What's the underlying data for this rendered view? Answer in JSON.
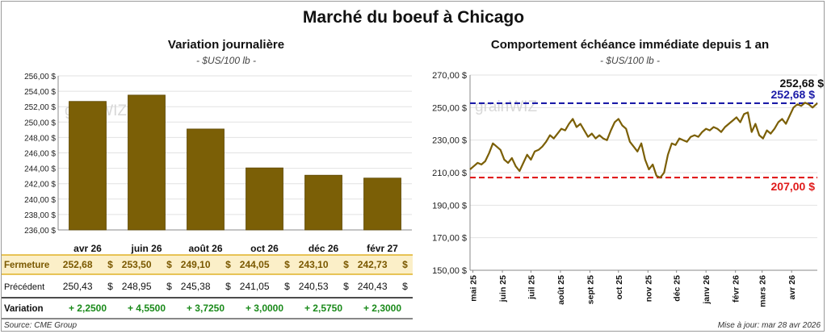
{
  "page": {
    "title": "Marché du boeuf à Chicago",
    "source": "Source: CME Group",
    "updated": "Mise à jour: mar 28 avr 2026",
    "watermark": "grainWIZ"
  },
  "colors": {
    "bar": "#7b5f06",
    "bar_edge": "#5e4804",
    "line": "#7b5f06",
    "fermeture_bg": "#fbefc8",
    "positive": "#1a8a1a",
    "upper_ref": "#1c1ca8",
    "lower_ref": "#e01b1b",
    "grid": "#e2e2e2"
  },
  "table": {
    "rows": [
      {
        "label": "Fermeture",
        "values": [
          "252,68",
          "253,50",
          "249,10",
          "244,05",
          "243,10",
          "242,73"
        ],
        "suffix": "$"
      },
      {
        "label": "Précédent",
        "values": [
          "250,43",
          "248,95",
          "245,38",
          "241,05",
          "240,53",
          "240,43"
        ],
        "suffix": "$"
      },
      {
        "label": "Variation",
        "values": [
          "+ 2,2500",
          "+ 4,5500",
          "+ 3,7250",
          "+ 3,0000",
          "+ 2,5750",
          "+ 2,3000"
        ]
      }
    ]
  },
  "chart_data": [
    {
      "type": "bar",
      "title": "Variation journalière",
      "subtitle": "- $US/100 lb -",
      "categories": [
        "avr 26",
        "juin 26",
        "août 26",
        "oct 26",
        "déc 26",
        "févr 27"
      ],
      "values": [
        252.68,
        253.5,
        249.1,
        244.05,
        243.1,
        242.73
      ],
      "ylim": [
        236,
        256
      ],
      "yticks": [
        236,
        238,
        240,
        242,
        244,
        246,
        248,
        250,
        252,
        254,
        256
      ],
      "ytick_labels": [
        "236,00 $",
        "238,00 $",
        "240,00 $",
        "242,00 $",
        "244,00 $",
        "246,00 $",
        "248,00 $",
        "250,00 $",
        "252,00 $",
        "254,00 $",
        "256,00 $"
      ],
      "grid": true
    },
    {
      "type": "line",
      "title": "Comportement  échéance immédiate depuis 1 an",
      "subtitle": "- $US/100 lb -",
      "ylim": [
        150,
        270
      ],
      "yticks": [
        150,
        170,
        190,
        210,
        230,
        250,
        270
      ],
      "ytick_labels": [
        "150,00 $",
        "170,00 $",
        "190,00 $",
        "210,00 $",
        "230,00 $",
        "250,00 $",
        "270,00 $"
      ],
      "xlim": [
        "2025-04-28",
        "2026-04-28"
      ],
      "xtick_labels": [
        "mai 25",
        "juin 25",
        "juil 25",
        "août 25",
        "sept 25",
        "oct 25",
        "nov 25",
        "déc 25",
        "janv 26",
        "févr 26",
        "mars 26",
        "avr 26"
      ],
      "xtick_dates": [
        "2025-05-01",
        "2025-06-01",
        "2025-07-01",
        "2025-08-01",
        "2025-09-01",
        "2025-10-01",
        "2025-11-01",
        "2025-12-01",
        "2026-01-01",
        "2026-02-01",
        "2026-03-01",
        "2026-04-01"
      ],
      "reference_lines": [
        {
          "label": "252,68 $",
          "value": 252.68,
          "style": "dashed"
        },
        {
          "label": "207,00 $",
          "value": 207.0,
          "style": "dashed"
        }
      ],
      "last_value_label": "252,68 $",
      "grid": true,
      "series": [
        {
          "x": [
            "2025-04-28",
            "2025-05-02",
            "2025-05-06",
            "2025-05-10",
            "2025-05-14",
            "2025-05-18",
            "2025-05-22",
            "2025-05-26",
            "2025-05-30",
            "2025-06-03",
            "2025-06-07",
            "2025-06-11",
            "2025-06-15",
            "2025-06-19",
            "2025-06-23",
            "2025-06-27",
            "2025-07-01",
            "2025-07-05",
            "2025-07-09",
            "2025-07-13",
            "2025-07-17",
            "2025-07-21",
            "2025-07-25",
            "2025-07-29",
            "2025-08-02",
            "2025-08-06",
            "2025-08-10",
            "2025-08-14",
            "2025-08-18",
            "2025-08-22",
            "2025-08-26",
            "2025-08-30",
            "2025-09-03",
            "2025-09-07",
            "2025-09-11",
            "2025-09-15",
            "2025-09-19",
            "2025-09-23",
            "2025-09-27",
            "2025-10-01",
            "2025-10-05",
            "2025-10-09",
            "2025-10-13",
            "2025-10-17",
            "2025-10-21",
            "2025-10-25",
            "2025-10-29",
            "2025-11-02",
            "2025-11-06",
            "2025-11-10",
            "2025-11-14",
            "2025-11-18",
            "2025-11-22",
            "2025-11-26",
            "2025-11-30",
            "2025-12-04",
            "2025-12-08",
            "2025-12-12",
            "2025-12-16",
            "2025-12-20",
            "2025-12-24",
            "2025-12-28",
            "2026-01-01",
            "2026-01-05",
            "2026-01-09",
            "2026-01-13",
            "2026-01-17",
            "2026-01-21",
            "2026-01-25",
            "2026-01-29",
            "2026-02-02",
            "2026-02-06",
            "2026-02-10",
            "2026-02-14",
            "2026-02-18",
            "2026-02-22",
            "2026-02-26",
            "2026-03-02",
            "2026-03-06",
            "2026-03-10",
            "2026-03-14",
            "2026-03-18",
            "2026-03-22",
            "2026-03-26",
            "2026-03-30",
            "2026-04-03",
            "2026-04-07",
            "2026-04-11",
            "2026-04-15",
            "2026-04-19",
            "2026-04-23",
            "2026-04-28"
          ],
          "y": [
            212,
            214,
            216,
            215,
            217,
            222,
            228,
            226,
            224,
            218,
            216,
            219,
            214,
            211,
            216,
            221,
            218,
            223,
            224,
            226,
            229,
            233,
            231,
            234,
            237,
            236,
            240,
            243,
            238,
            240,
            236,
            232,
            234,
            231,
            233,
            231,
            230,
            236,
            241,
            243,
            239,
            237,
            229,
            226,
            223,
            228,
            218,
            212,
            215,
            208,
            207,
            210,
            221,
            228,
            227,
            231,
            230,
            229,
            232,
            233,
            232,
            235,
            237,
            236,
            238,
            237,
            235,
            238,
            240,
            242,
            244,
            241,
            246,
            247,
            235,
            240,
            233,
            231,
            236,
            234,
            237,
            241,
            243,
            240,
            245,
            250,
            252,
            251,
            253,
            252,
            250,
            252.68
          ]
        }
      ]
    }
  ]
}
